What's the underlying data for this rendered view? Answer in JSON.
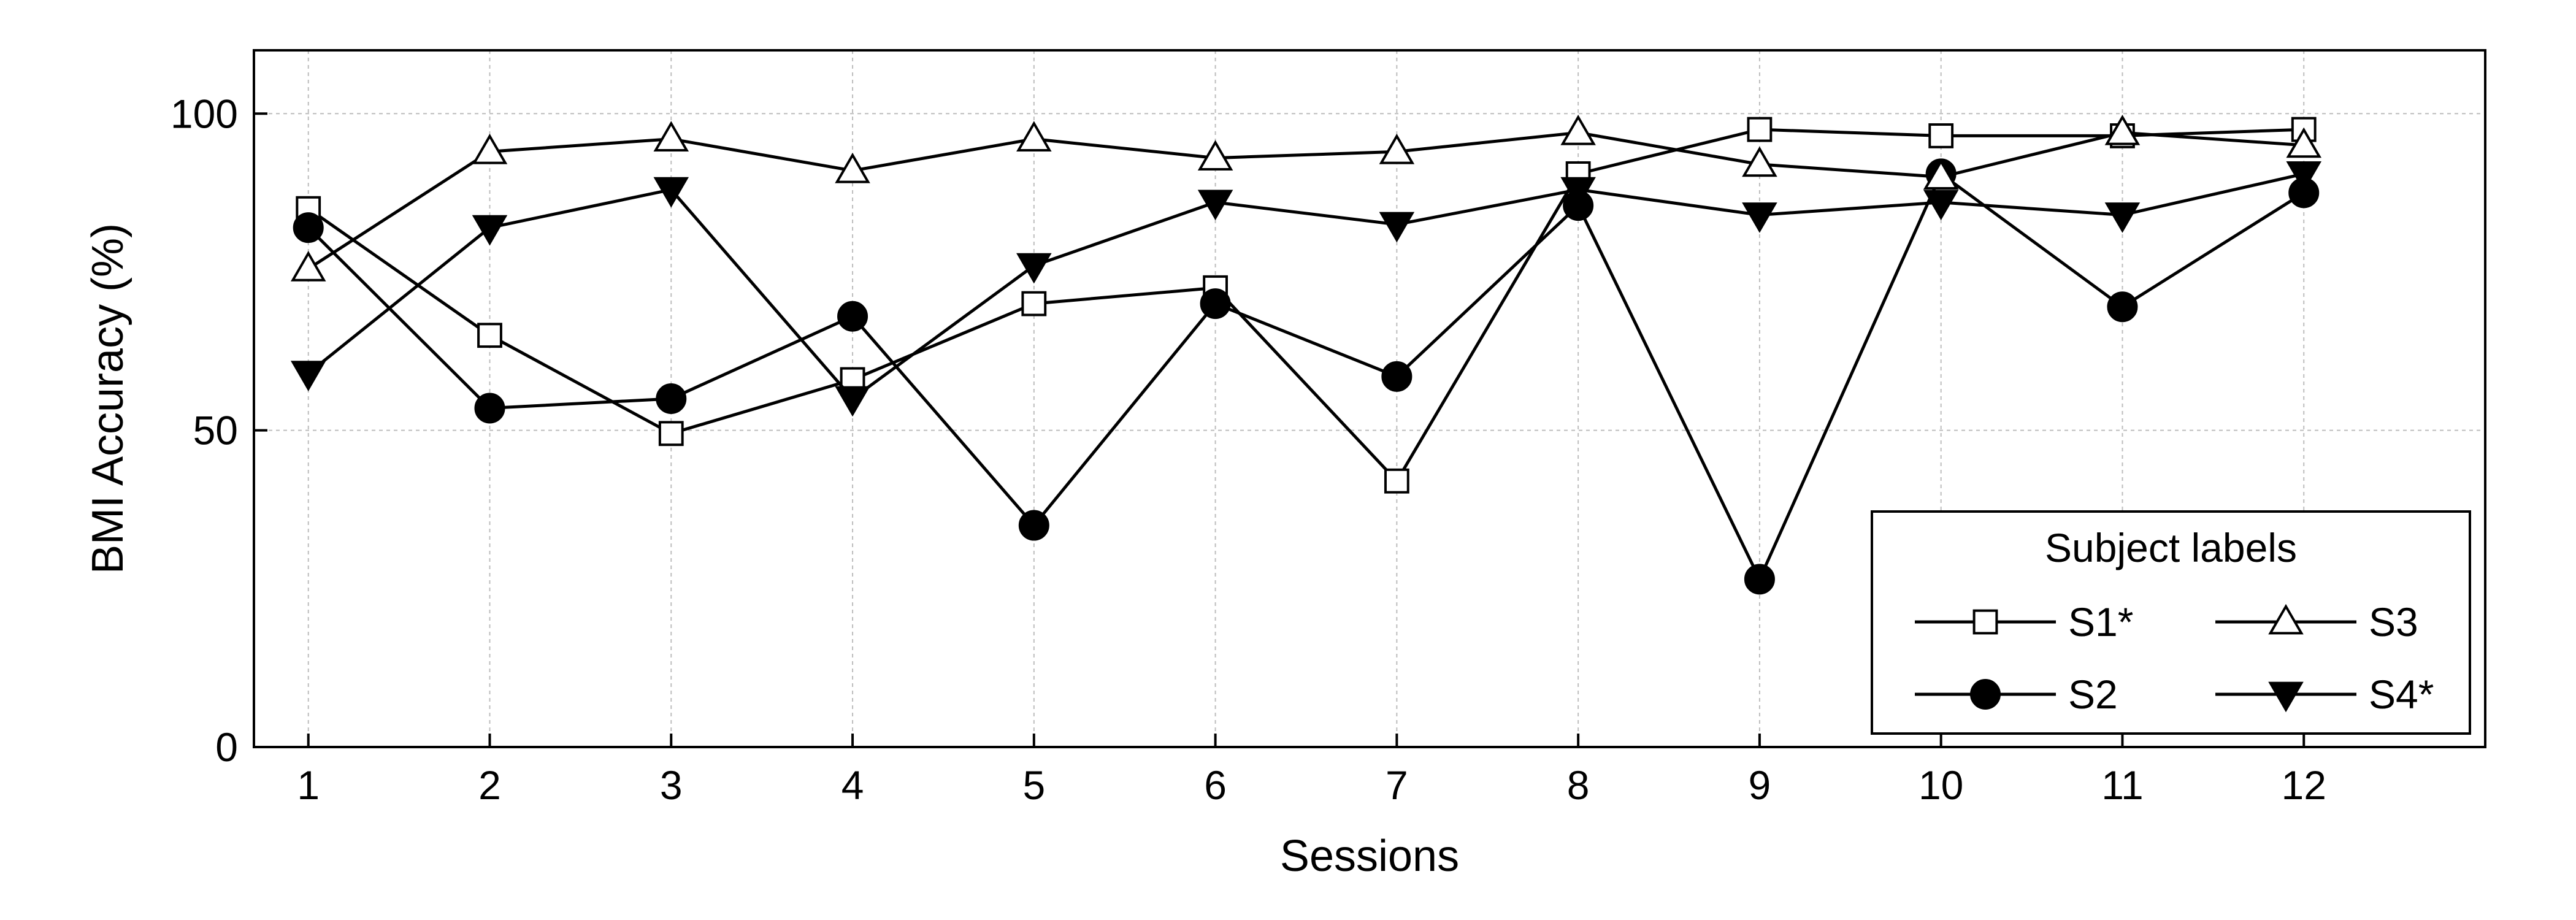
{
  "chart_data": {
    "type": "line",
    "xlabel": "Sessions",
    "ylabel": "BMI Accuracy (%)",
    "x": [
      1,
      2,
      3,
      4,
      5,
      6,
      7,
      8,
      9,
      10,
      11,
      12
    ],
    "x_ticks": [
      "1",
      "2",
      "3",
      "4",
      "5",
      "6",
      "7",
      "8",
      "9",
      "10",
      "11",
      "12"
    ],
    "y_ticks": [
      "0",
      "50",
      "100"
    ],
    "xlim": [
      0.7,
      13
    ],
    "ylim": [
      0,
      110
    ],
    "grid": true,
    "legend": {
      "title": "Subject labels",
      "placement": "bottom-right"
    },
    "series": [
      {
        "name": "S1*",
        "marker": "square-open",
        "values": [
          85,
          65,
          49.5,
          58,
          70,
          72.5,
          42,
          90.5,
          97.5,
          96.5,
          96.5,
          97.5
        ]
      },
      {
        "name": "S2",
        "marker": "circle-filled",
        "values": [
          82,
          53.5,
          55,
          68,
          35,
          70,
          58.5,
          85.5,
          26.5,
          90.5,
          69.5,
          87.5
        ]
      },
      {
        "name": "S3",
        "marker": "triangle-up-open",
        "values": [
          75.5,
          94,
          96,
          91,
          96,
          93,
          94,
          97,
          92,
          90,
          97,
          95
        ]
      },
      {
        "name": "S4*",
        "marker": "triangle-down-filled",
        "values": [
          59,
          82,
          88,
          55,
          76,
          86,
          82.5,
          88,
          84,
          86,
          84,
          90.5
        ]
      }
    ]
  }
}
